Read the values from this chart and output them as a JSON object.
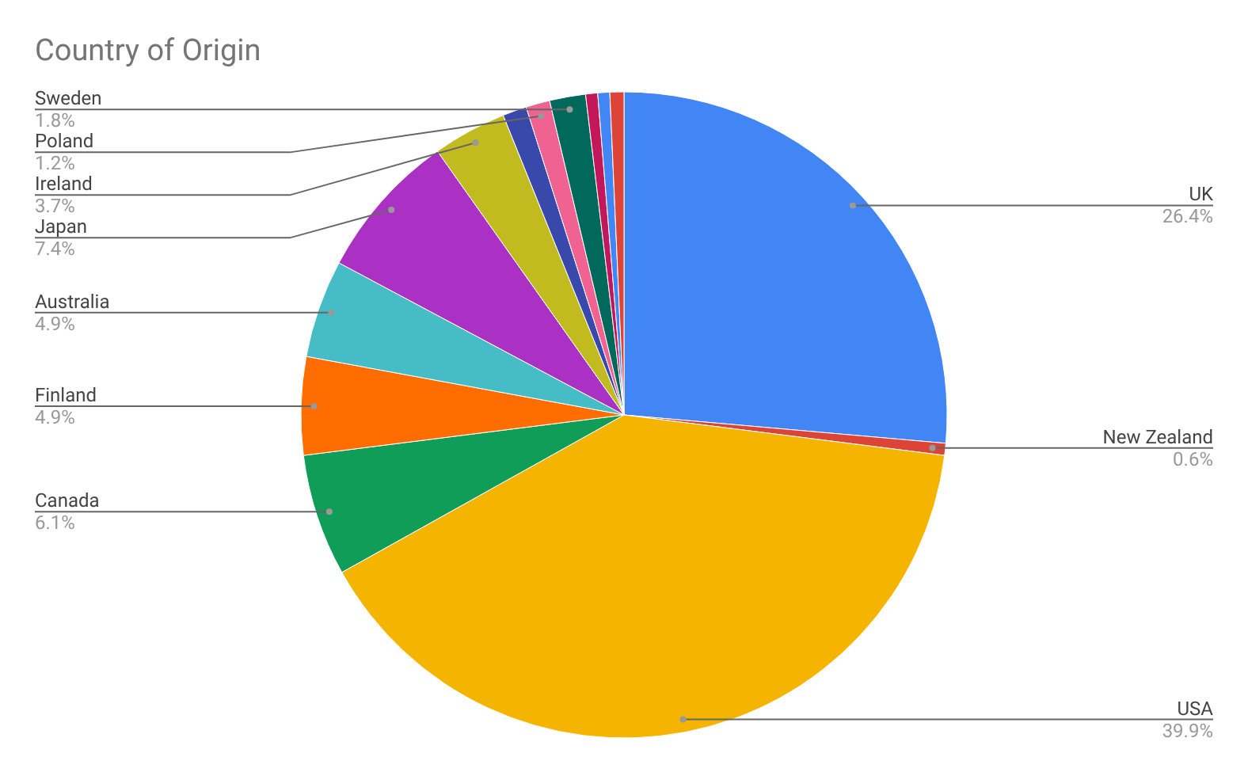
{
  "chart_data": {
    "type": "pie",
    "title": "Country of Origin",
    "categories": [
      "UK",
      "New Zealand",
      "USA",
      "Canada",
      "Finland",
      "Australia",
      "Japan",
      "Ireland",
      null,
      "Poland",
      "Sweden",
      null,
      null,
      null
    ],
    "values": [
      26.4,
      0.6,
      39.9,
      6.1,
      4.9,
      4.9,
      7.4,
      3.7,
      1.2,
      1.2,
      1.8,
      0.6,
      0.6,
      0.7
    ],
    "colors": [
      "#4285f4",
      "#db4437",
      "#f4b400",
      "#0f9d58",
      "#ff6d00",
      "#46bdc6",
      "#ab30c4",
      "#c2bb1f",
      "#3949ab",
      "#f06292",
      "#00695c",
      "#c2185b",
      "#4285f4",
      "#db4437"
    ],
    "value_labels": [
      "26.4%",
      "0.6%",
      "39.9%",
      "6.1%",
      "4.9%",
      "4.9%",
      "7.4%",
      "3.7%",
      null,
      "1.2%",
      "1.8%",
      null,
      null,
      null
    ]
  }
}
